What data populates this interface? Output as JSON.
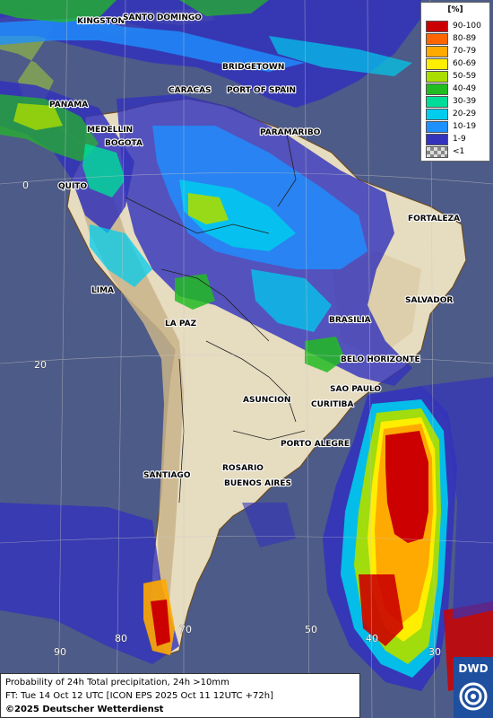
{
  "legend": {
    "title": "[%]",
    "items": [
      {
        "label": "90-100",
        "color": "#cc0000"
      },
      {
        "label": "80-89",
        "color": "#ff6600"
      },
      {
        "label": "70-79",
        "color": "#ffaa00"
      },
      {
        "label": "60-69",
        "color": "#ffee00"
      },
      {
        "label": "50-59",
        "color": "#aadd00"
      },
      {
        "label": "40-49",
        "color": "#22bb22"
      },
      {
        "label": "30-39",
        "color": "#00dd99"
      },
      {
        "label": "20-29",
        "color": "#00ccee"
      },
      {
        "label": "10-19",
        "color": "#1e90ff"
      },
      {
        "label": "1-9",
        "color": "#3333bb"
      },
      {
        "label": "<1",
        "color": "#999999"
      }
    ]
  },
  "cities": {
    "kingston": "KINGSTON",
    "santo_domingo": "SANTO DOMINGO",
    "bridgetown": "BRIDGETOWN",
    "caracas": "CARACAS",
    "port_of_spain": "PORT OF SPAIN",
    "panama": "PANAMA",
    "medellin": "MEDELLIN",
    "bogota": "BOGOTA",
    "paramaribo": "PARAMARIBO",
    "quito": "QUITO",
    "fortaleza": "FORTALEZA",
    "lima": "LIMA",
    "salvador": "SALVADOR",
    "la_paz": "LA PAZ",
    "brasilia": "BRASILIA",
    "belo_horizonte": "BELO HORIZONTE",
    "sao_paulo": "SAO PAULO",
    "asuncion": "ASUNCION",
    "curitiba": "CURITIBA",
    "porto_alegre": "PORTO ALEGRE",
    "santiago": "SANTIAGO",
    "rosario": "ROSARIO",
    "buenos_aires": "BUENOS AIRES"
  },
  "grid_labels": {
    "lat_0": "0",
    "lat_20": "20",
    "lon_90": "90",
    "lon_80": "80",
    "lon_70": "70",
    "lon_50": "50",
    "lon_40": "40",
    "lon_30": "30"
  },
  "caption": {
    "line1": "Probability of 24h Total precipitation, 24h >10mm",
    "line2": "FT: Tue 14 Oct 12 UTC [ICON EPS 2025 Oct 11 12UTC +72h]",
    "line3": "©2025 Deutscher Wetterdienst"
  },
  "logo": {
    "text": "DWD"
  }
}
